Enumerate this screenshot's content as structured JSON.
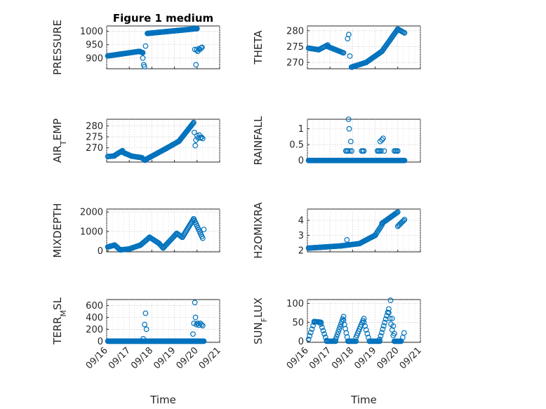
{
  "figure": {
    "title": "Figure 1 medium"
  },
  "chart_data": [
    {
      "type": "scatter",
      "id": "pressure",
      "title": "Figure 1 medium",
      "ylabel": "PRESSURE",
      "xlabel": "",
      "xticks": [
        "09/16",
        "09/17",
        "09/18",
        "09/19",
        "09/20",
        "09/21"
      ],
      "show_xticks": false,
      "xlim": [
        0,
        5
      ],
      "ylim": [
        860,
        1020
      ],
      "yticks": [
        900,
        950,
        1000
      ],
      "segments": [
        {
          "x": [
            0.05,
            1.45
          ],
          "y": [
            908,
            925
          ],
          "n": 55
        },
        {
          "x": [
            1.45,
            1.6
          ],
          "y": [
            925,
            920
          ],
          "n": 6
        },
        {
          "x": [
            1.8,
            4.0
          ],
          "y": [
            992,
            1010
          ],
          "n": 80
        }
      ],
      "points": [
        [
          1.6,
          900
        ],
        [
          1.64,
          875
        ],
        [
          1.67,
          868
        ],
        [
          1.72,
          945
        ],
        [
          3.85,
          1012
        ],
        [
          3.9,
          932
        ],
        [
          3.95,
          875
        ],
        [
          3.98,
          930
        ],
        [
          4.03,
          925
        ],
        [
          4.08,
          935
        ],
        [
          4.13,
          932
        ],
        [
          4.18,
          938
        ],
        [
          4.22,
          940
        ]
      ]
    },
    {
      "type": "scatter",
      "id": "theta",
      "ylabel": "THETA",
      "xlabel": "",
      "xticks": [
        "09/16",
        "09/17",
        "09/18",
        "09/19",
        "09/20",
        "09/21"
      ],
      "show_xticks": false,
      "xlim": [
        0,
        5
      ],
      "ylim": [
        268,
        281.5
      ],
      "yticks": [
        270,
        275,
        280
      ],
      "segments": [
        {
          "x": [
            0.05,
            0.5
          ],
          "y": [
            274.5,
            274
          ],
          "n": 12
        },
        {
          "x": [
            0.5,
            0.9
          ],
          "y": [
            274,
            275.5
          ],
          "n": 10
        },
        {
          "x": [
            0.9,
            1.6
          ],
          "y": [
            275,
            273
          ],
          "n": 18
        },
        {
          "x": [
            1.95,
            2.6
          ],
          "y": [
            268.5,
            270
          ],
          "n": 20
        },
        {
          "x": [
            2.6,
            3.3
          ],
          "y": [
            270,
            273.5
          ],
          "n": 20
        },
        {
          "x": [
            3.3,
            4.0
          ],
          "y": [
            273.5,
            280.5
          ],
          "n": 22
        },
        {
          "x": [
            4.0,
            4.3
          ],
          "y": [
            280.5,
            279.3
          ],
          "n": 8
        }
      ],
      "points": [
        [
          1.78,
          277.5
        ],
        [
          1.83,
          278.8
        ],
        [
          1.88,
          272
        ],
        [
          1.98,
          268.5
        ]
      ]
    },
    {
      "type": "scatter",
      "id": "air_temp",
      "ylabel": "AIR_TEMP",
      "xlabel": "",
      "xticks": [
        "09/16",
        "09/17",
        "09/18",
        "09/19",
        "09/20",
        "09/21"
      ],
      "show_xticks": false,
      "xlim": [
        0,
        5
      ],
      "ylim": [
        263.5,
        283
      ],
      "yticks": [
        270,
        275,
        280
      ],
      "segments": [
        {
          "x": [
            0.05,
            0.35
          ],
          "y": [
            266,
            266.3
          ],
          "n": 8
        },
        {
          "x": [
            0.35,
            0.7
          ],
          "y": [
            266.5,
            268.7
          ],
          "n": 10
        },
        {
          "x": [
            0.7,
            1.1
          ],
          "y": [
            268,
            266.2
          ],
          "n": 12
        },
        {
          "x": [
            1.1,
            1.55
          ],
          "y": [
            266.2,
            265.5
          ],
          "n": 12
        },
        {
          "x": [
            1.55,
            1.7
          ],
          "y": [
            265.5,
            264.3
          ],
          "n": 5
        },
        {
          "x": [
            1.7,
            2.6
          ],
          "y": [
            264.5,
            269.5
          ],
          "n": 28
        },
        {
          "x": [
            2.6,
            3.2
          ],
          "y": [
            269.5,
            273
          ],
          "n": 18
        },
        {
          "x": [
            3.2,
            3.85
          ],
          "y": [
            273,
            281.5
          ],
          "n": 24
        }
      ],
      "points": [
        [
          3.88,
          277
        ],
        [
          3.92,
          271
        ],
        [
          3.95,
          273.5
        ],
        [
          4.0,
          275.5
        ],
        [
          4.05,
          274.5
        ],
        [
          4.1,
          275.8
        ],
        [
          4.15,
          274.5
        ],
        [
          4.2,
          274.8
        ],
        [
          4.25,
          274.2
        ]
      ]
    },
    {
      "type": "scatter",
      "id": "rainfall",
      "ylabel": "RAINFALL",
      "xlabel": "",
      "xticks": [
        "09/16",
        "09/17",
        "09/18",
        "09/19",
        "09/20",
        "09/21"
      ],
      "show_xticks": false,
      "xlim": [
        0,
        5
      ],
      "ylim": [
        -0.05,
        1.3
      ],
      "yticks": [
        0,
        0.5,
        1
      ],
      "yticklabels": [
        "0",
        "0.5",
        "1"
      ],
      "segments": [
        {
          "x": [
            0.05,
            4.3
          ],
          "y": [
            0,
            0
          ],
          "n": 170
        }
      ],
      "points": [
        [
          1.7,
          0.3
        ],
        [
          1.75,
          0.3
        ],
        [
          1.8,
          0.3
        ],
        [
          1.82,
          1.3
        ],
        [
          1.85,
          1.0
        ],
        [
          1.88,
          0.3
        ],
        [
          1.92,
          0.6
        ],
        [
          1.96,
          0.3
        ],
        [
          2.4,
          0.3
        ],
        [
          2.45,
          0.3
        ],
        [
          2.5,
          0.3
        ],
        [
          3.1,
          0.3
        ],
        [
          3.15,
          0.3
        ],
        [
          3.2,
          0.3
        ],
        [
          3.22,
          0.6
        ],
        [
          3.26,
          0.3
        ],
        [
          3.3,
          0.65
        ],
        [
          3.35,
          0.7
        ],
        [
          3.4,
          0.3
        ],
        [
          3.85,
          0.3
        ],
        [
          3.9,
          0.3
        ],
        [
          3.95,
          0.3
        ],
        [
          4.0,
          0.3
        ]
      ]
    },
    {
      "type": "scatter",
      "id": "mixdepth",
      "ylabel": "MIXDEPTH",
      "xlabel": "",
      "xticks": [
        "09/16",
        "09/17",
        "09/18",
        "09/19",
        "09/20",
        "09/21"
      ],
      "show_xticks": false,
      "xlim": [
        0,
        5
      ],
      "ylim": [
        -50,
        2150
      ],
      "yticks": [
        0,
        1000,
        2000
      ],
      "segments": [
        {
          "x": [
            0.05,
            0.35
          ],
          "y": [
            200,
            300
          ],
          "n": 10
        },
        {
          "x": [
            0.35,
            0.6
          ],
          "y": [
            300,
            50
          ],
          "n": 8
        },
        {
          "x": [
            0.6,
            1.0
          ],
          "y": [
            50,
            100
          ],
          "n": 10
        },
        {
          "x": [
            1.0,
            1.5
          ],
          "y": [
            100,
            300
          ],
          "n": 14
        },
        {
          "x": [
            1.5,
            1.9
          ],
          "y": [
            300,
            700
          ],
          "n": 12
        },
        {
          "x": [
            1.9,
            2.3
          ],
          "y": [
            700,
            400
          ],
          "n": 10
        },
        {
          "x": [
            2.3,
            2.5
          ],
          "y": [
            400,
            150
          ],
          "n": 6
        },
        {
          "x": [
            2.5,
            3.1
          ],
          "y": [
            150,
            900
          ],
          "n": 16
        },
        {
          "x": [
            3.1,
            3.35
          ],
          "y": [
            900,
            700
          ],
          "n": 6
        },
        {
          "x": [
            3.35,
            3.85
          ],
          "y": [
            700,
            1650
          ],
          "n": 16
        },
        {
          "x": [
            3.85,
            4.25
          ],
          "y": [
            1650,
            650
          ],
          "n": 12
        }
      ],
      "points": [
        [
          4.3,
          1100
        ]
      ]
    },
    {
      "type": "scatter",
      "id": "h2omixra",
      "ylabel": "H2OMIXRA",
      "xlabel": "",
      "xticks": [
        "09/16",
        "09/17",
        "09/18",
        "09/19",
        "09/20",
        "09/21"
      ],
      "show_xticks": false,
      "xlim": [
        0,
        5
      ],
      "ylim": [
        1.9,
        4.75
      ],
      "yticks": [
        2,
        3,
        4
      ],
      "segments": [
        {
          "x": [
            0.05,
            1.5
          ],
          "y": [
            2.15,
            2.3
          ],
          "n": 40
        },
        {
          "x": [
            1.5,
            2.3
          ],
          "y": [
            2.3,
            2.45
          ],
          "n": 22
        },
        {
          "x": [
            2.3,
            3.0
          ],
          "y": [
            2.45,
            3.0
          ],
          "n": 20
        },
        {
          "x": [
            3.0,
            3.3
          ],
          "y": [
            3.0,
            3.7
          ],
          "n": 8
        },
        {
          "x": [
            3.3,
            4.0
          ],
          "y": [
            3.8,
            4.55
          ],
          "n": 20
        },
        {
          "x": [
            4.0,
            4.3
          ],
          "y": [
            3.6,
            4.05
          ],
          "n": 8
        }
      ],
      "points": [
        [
          1.75,
          2.7
        ]
      ]
    },
    {
      "type": "scatter",
      "id": "terr_msl",
      "ylabel": "TERR_MSL",
      "xlabel": "Time",
      "xticks": [
        "09/16",
        "09/17",
        "09/18",
        "09/19",
        "09/20",
        "09/21"
      ],
      "show_xticks": true,
      "xlim": [
        0,
        5
      ],
      "ylim": [
        -20,
        700
      ],
      "yticks": [
        0,
        200,
        400,
        600
      ],
      "segments": [
        {
          "x": [
            0.05,
            4.3
          ],
          "y": [
            0,
            0
          ],
          "n": 170
        }
      ],
      "points": [
        [
          1.62,
          40
        ],
        [
          1.68,
          280
        ],
        [
          1.72,
          470
        ],
        [
          1.76,
          200
        ],
        [
          3.82,
          120
        ],
        [
          3.86,
          300
        ],
        [
          3.9,
          650
        ],
        [
          3.93,
          400
        ],
        [
          3.97,
          280
        ],
        [
          4.02,
          300
        ],
        [
          4.08,
          270
        ],
        [
          4.14,
          300
        ],
        [
          4.2,
          280
        ],
        [
          4.25,
          260
        ]
      ]
    },
    {
      "type": "scatter",
      "id": "sun_flux",
      "ylabel": "SUN_FLUX",
      "xlabel": "Time",
      "xticks": [
        "09/16",
        "09/17",
        "09/18",
        "09/19",
        "09/20",
        "09/21"
      ],
      "show_xticks": true,
      "xlim": [
        0,
        5
      ],
      "ylim": [
        -3,
        110
      ],
      "yticks": [
        0,
        50,
        100
      ],
      "segments": [
        {
          "x": [
            0.05,
            0.3
          ],
          "y": [
            5,
            50
          ],
          "n": 6
        },
        {
          "x": [
            0.3,
            0.6
          ],
          "y": [
            52,
            50
          ],
          "n": 8
        },
        {
          "x": [
            0.6,
            0.85
          ],
          "y": [
            45,
            2
          ],
          "n": 6
        },
        {
          "x": [
            0.85,
            1.25
          ],
          "y": [
            0,
            0
          ],
          "n": 10
        },
        {
          "x": [
            1.25,
            1.6
          ],
          "y": [
            5,
            65
          ],
          "n": 10
        },
        {
          "x": [
            1.6,
            1.8
          ],
          "y": [
            55,
            0
          ],
          "n": 6
        },
        {
          "x": [
            1.8,
            2.15
          ],
          "y": [
            0,
            0
          ],
          "n": 10
        },
        {
          "x": [
            2.15,
            2.5
          ],
          "y": [
            10,
            60
          ],
          "n": 10
        },
        {
          "x": [
            2.5,
            2.75
          ],
          "y": [
            50,
            0
          ],
          "n": 6
        },
        {
          "x": [
            2.75,
            3.2
          ],
          "y": [
            0,
            0
          ],
          "n": 12
        },
        {
          "x": [
            3.2,
            3.6
          ],
          "y": [
            5,
            85
          ],
          "n": 10
        },
        {
          "x": [
            3.6,
            3.85
          ],
          "y": [
            75,
            0
          ],
          "n": 6
        },
        {
          "x": [
            3.85,
            4.15
          ],
          "y": [
            0,
            0
          ],
          "n": 10
        }
      ],
      "points": [
        [
          3.68,
          108
        ],
        [
          3.75,
          60
        ],
        [
          3.8,
          40
        ],
        [
          3.85,
          20
        ],
        [
          4.22,
          10
        ],
        [
          4.28,
          22
        ]
      ]
    }
  ]
}
